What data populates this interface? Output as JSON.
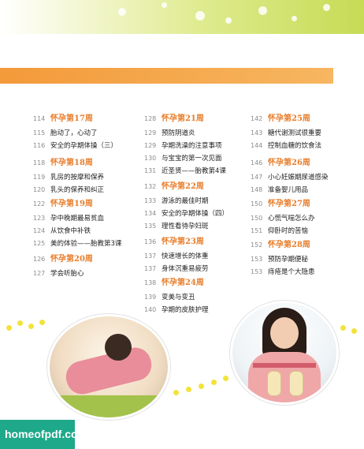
{
  "columns": [
    {
      "groups": [
        {
          "week": {
            "page": "114",
            "title": "怀孕第17周"
          },
          "entries": [
            {
              "page": "115",
              "title": "胎动了，心动了"
            },
            {
              "page": "116",
              "title": "安全的孕期体操（三）"
            }
          ]
        },
        {
          "week": {
            "page": "118",
            "title": "怀孕第18周"
          },
          "entries": [
            {
              "page": "119",
              "title": "乳房的按摩和保养"
            },
            {
              "page": "120",
              "title": "乳头的保养和纠正"
            }
          ]
        },
        {
          "week": {
            "page": "122",
            "title": "怀孕第19周"
          },
          "entries": [
            {
              "page": "123",
              "title": "孕中晚期最易贫血"
            },
            {
              "page": "124",
              "title": "从饮食中补铁"
            },
            {
              "page": "125",
              "title": "美的体验——胎教第3课"
            }
          ]
        },
        {
          "week": {
            "page": "126",
            "title": "怀孕第20周"
          },
          "entries": [
            {
              "page": "127",
              "title": "学会听胎心"
            }
          ]
        }
      ]
    },
    {
      "groups": [
        {
          "week": {
            "page": "128",
            "title": "怀孕第21周"
          },
          "entries": [
            {
              "page": "129",
              "title": "预防阴道炎"
            },
            {
              "page": "129",
              "title": "孕期洗澡的注意事项"
            },
            {
              "page": "130",
              "title": "与宝宝的第一次见面"
            },
            {
              "page": "131",
              "title": "近圣贤——胎教第4课"
            }
          ]
        },
        {
          "week": {
            "page": "132",
            "title": "怀孕第22周"
          },
          "entries": [
            {
              "page": "133",
              "title": "游泳的最佳时期"
            },
            {
              "page": "134",
              "title": "安全的孕期体操（四）"
            },
            {
              "page": "135",
              "title": "理性看待孕妇斑"
            }
          ]
        },
        {
          "week": {
            "page": "136",
            "title": "怀孕第23周"
          },
          "entries": [
            {
              "page": "137",
              "title": "快速增长的体重"
            },
            {
              "page": "137",
              "title": "身体沉重易疲劳"
            }
          ]
        },
        {
          "week": {
            "page": "138",
            "title": "怀孕第24周"
          },
          "entries": [
            {
              "page": "139",
              "title": "变美与变丑"
            },
            {
              "page": "140",
              "title": "孕期的皮肤护理"
            }
          ]
        }
      ]
    },
    {
      "groups": [
        {
          "week": {
            "page": "142",
            "title": "怀孕第25周"
          },
          "entries": [
            {
              "page": "143",
              "title": "糖代谢测试很重要"
            },
            {
              "page": "144",
              "title": "控制血糖的饮食法"
            }
          ]
        },
        {
          "week": {
            "page": "146",
            "title": "怀孕第26周"
          },
          "entries": [
            {
              "page": "147",
              "title": "小心妊娠期尿道感染"
            },
            {
              "page": "148",
              "title": "准备婴儿用品"
            }
          ]
        },
        {
          "week": {
            "page": "150",
            "title": "怀孕第27周"
          },
          "entries": [
            {
              "page": "150",
              "title": "心慌气喘怎么办"
            },
            {
              "page": "151",
              "title": "仰卧时的苦恼"
            }
          ]
        },
        {
          "week": {
            "page": "152",
            "title": "怀孕第28周"
          },
          "entries": [
            {
              "page": "153",
              "title": "预防孕期便秘"
            },
            {
              "page": "153",
              "title": "痔疮是个大隐患"
            }
          ]
        }
      ]
    }
  ],
  "watermark": "homeofpdf.com",
  "colors": {
    "accent": "#f39a3a",
    "week_title": "#e97e2c",
    "header": "#c7db55",
    "logo_bg": "#1ea98a"
  }
}
